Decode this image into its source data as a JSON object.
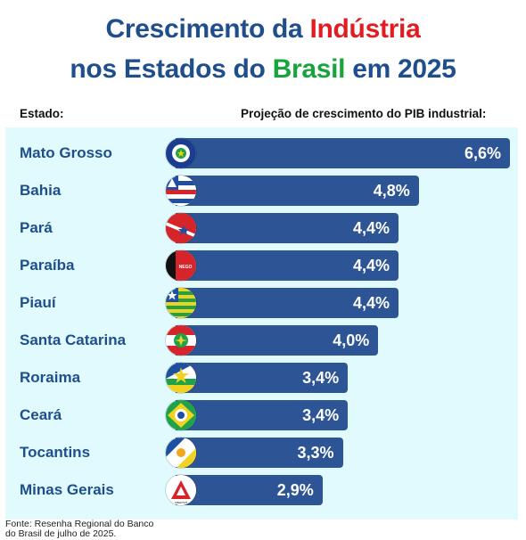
{
  "title": {
    "line1_part1": "Crescimento da ",
    "line1_highlight": "Indústria",
    "line2_part1": "nos Estados do ",
    "line2_highlight": "Brasil",
    "line2_part2": " em 2025"
  },
  "colors": {
    "title_blue": "#1f4e8c",
    "title_red": "#e21c23",
    "title_green": "#16a53c",
    "bar": "#2d5596",
    "panel_bg": "#e0fafd"
  },
  "header": {
    "state_label": "Estado:",
    "value_label": "Projeção de crescimento do PIB industrial:"
  },
  "chart_data": {
    "type": "bar",
    "orientation": "horizontal",
    "categories": [
      "Mato Grosso",
      "Bahia",
      "Pará",
      "Paraíba",
      "Piauí",
      "Santa Catarina",
      "Roraima",
      "Ceará",
      "Tocantins",
      "Minas Gerais"
    ],
    "values": [
      6.6,
      4.8,
      4.4,
      4.4,
      4.4,
      4.0,
      3.4,
      3.4,
      3.3,
      2.9
    ],
    "value_labels": [
      "6,6%",
      "4,8%",
      "4,4%",
      "4,4%",
      "4,4%",
      "4,0%",
      "3,4%",
      "3,4%",
      "3,3%",
      "2,9%"
    ],
    "flags": [
      "mato-grosso-flag-icon",
      "bahia-flag-icon",
      "para-flag-icon",
      "paraiba-flag-icon",
      "piaui-flag-icon",
      "santa-catarina-flag-icon",
      "roraima-flag-icon",
      "ceara-flag-icon",
      "tocantins-flag-icon",
      "minas-gerais-flag-icon"
    ],
    "xlim": [
      0,
      6.6
    ]
  },
  "source": {
    "line1": "Fonte: Resenha Regional do Banco",
    "line2": "do Brasil de julho de 2025."
  }
}
